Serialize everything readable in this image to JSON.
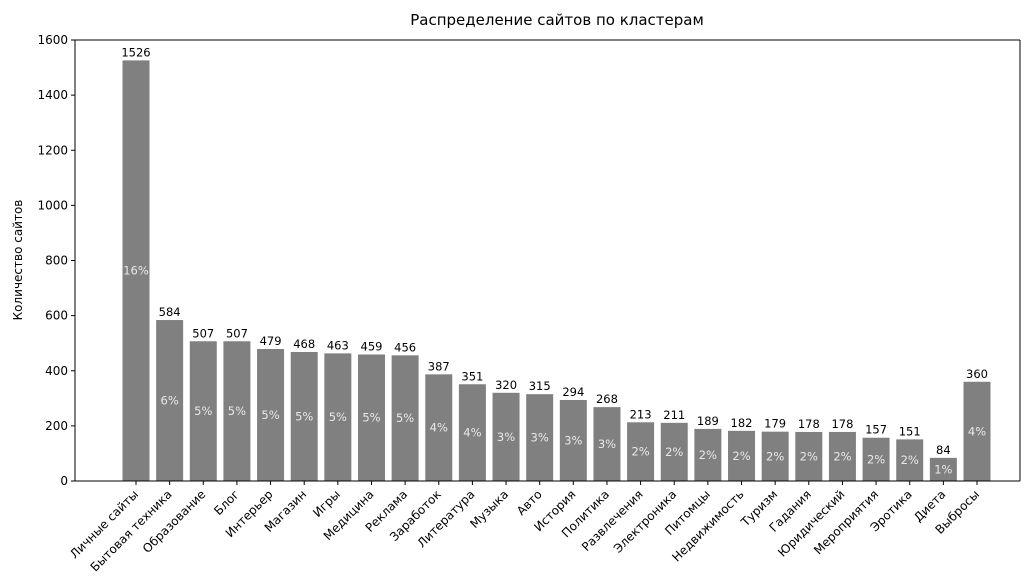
{
  "chart_data": {
    "type": "bar",
    "title": "Распределение сайтов по кластерам",
    "y_label": "Количество сайтов",
    "categories": [
      "Личные сайты",
      "Бытовая техника",
      "Образование",
      "Блог",
      "Интерьер",
      "Магазин",
      "Игры",
      "Медицина",
      "Реклама",
      "Заработок",
      "Литература",
      "Музыка",
      "Авто",
      "История",
      "Политика",
      "Развлечения",
      "Электроника",
      "Питомцы",
      "Недвижимость",
      "Туризм",
      "Гадания",
      "Юридический",
      "Мероприятия",
      "Эротика",
      "Диета",
      "Выбросы"
    ],
    "values": [
      1526,
      584,
      507,
      507,
      479,
      468,
      463,
      459,
      456,
      387,
      351,
      320,
      315,
      294,
      268,
      213,
      211,
      189,
      182,
      179,
      178,
      178,
      157,
      151,
      84,
      360
    ],
    "percent_labels": [
      "16%",
      "6%",
      "5%",
      "5%",
      "5%",
      "5%",
      "5%",
      "5%",
      "5%",
      "4%",
      "4%",
      "3%",
      "3%",
      "3%",
      "3%",
      "2%",
      "2%",
      "2%",
      "2%",
      "2%",
      "2%",
      "2%",
      "2%",
      "2%",
      "1%",
      "4%"
    ],
    "color": "#808080",
    "ylim": [
      0,
      1600
    ],
    "yticks": [
      0,
      200,
      400,
      600,
      800,
      1000,
      1200,
      1400,
      1600
    ],
    "grid": false
  }
}
